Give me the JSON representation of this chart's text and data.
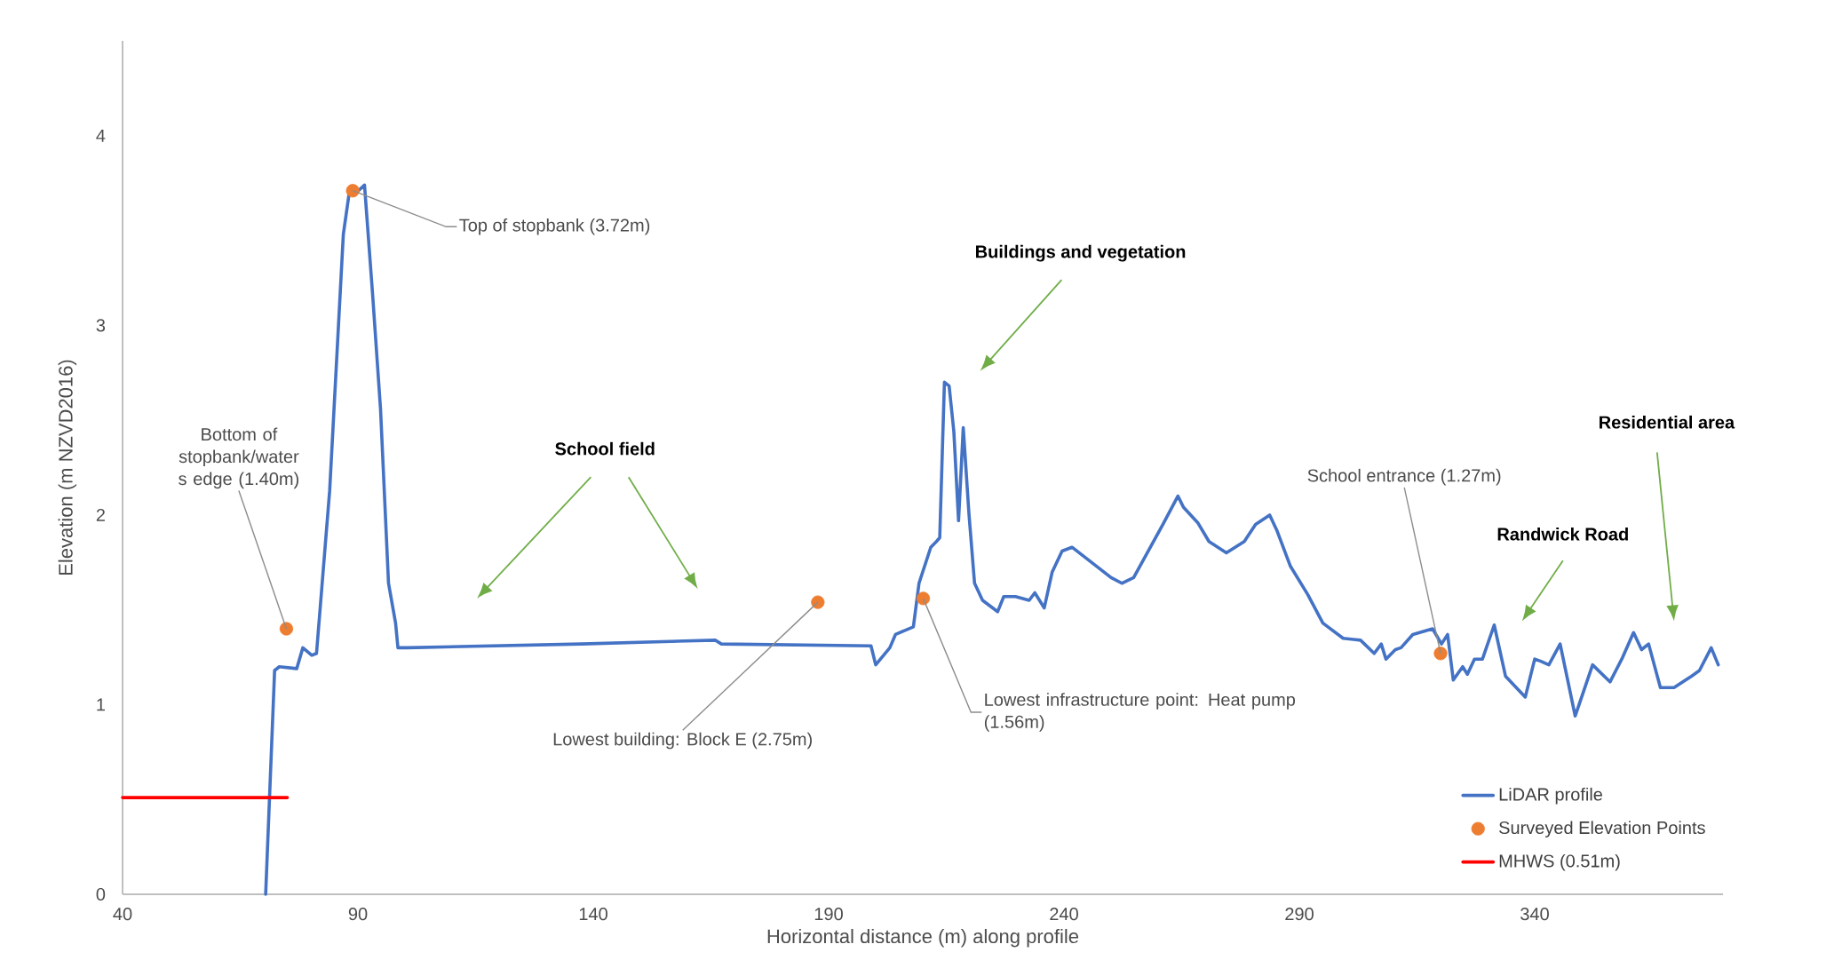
{
  "chart_data": {
    "type": "line",
    "xlabel": "Horizontal distance (m) along profile",
    "ylabel": "Elevation (m NZVD2016)",
    "xlim": [
      40,
      380
    ],
    "xticks": [
      40,
      90,
      140,
      190,
      240,
      290,
      340
    ],
    "ylim": [
      0,
      4.5
    ],
    "yticks": [
      0,
      1,
      2,
      3,
      4
    ],
    "grid": false,
    "legend": "bottom right",
    "series": [
      {
        "name": "LiDAR profile",
        "type": "line",
        "color": "#4472c4",
        "marker": "none",
        "x": [
          70.4,
          72.3,
          73.3,
          77,
          78.3,
          80.2,
          81.2,
          84,
          86.9,
          88.1,
          90.1,
          91.4,
          93.1,
          94.8,
          96.5,
          98,
          98.5,
          100.5,
          137.5,
          165.9,
          167.2,
          199,
          200,
          203,
          204.2,
          208,
          209.2,
          211.7,
          212.9,
          213.6,
          214.6,
          215.6,
          216.6,
          217.6,
          218.6,
          219.8,
          221,
          222.7,
          225.9,
          227.2,
          229.7,
          232.6,
          233.8,
          235.8,
          237.5,
          239.6,
          241.7,
          247.4,
          250,
          252.3,
          254.8,
          261,
          264.2,
          265.4,
          268.4,
          270.8,
          274.5,
          278.3,
          280.7,
          283.7,
          285.2,
          288.1,
          291.8,
          295,
          299.3,
          303,
          305.9,
          307.4,
          308.4,
          310.4,
          311.6,
          314.1,
          318.3,
          320.2,
          321.5,
          322.7,
          324.7,
          325.7,
          327.2,
          328.9,
          331.4,
          333.8,
          338,
          340,
          341.2,
          343,
          345.4,
          348.6,
          352.3,
          356,
          358.5,
          361,
          362.7,
          364.2,
          366.7,
          369.6,
          373.3,
          375,
          377.5,
          379
        ],
        "values": [
          0,
          1.18,
          1.2,
          1.19,
          1.3,
          1.26,
          1.27,
          2.13,
          3.48,
          3.69,
          3.71,
          3.74,
          3.17,
          2.56,
          1.64,
          1.43,
          1.3,
          1.3,
          1.32,
          1.34,
          1.32,
          1.31,
          1.21,
          1.3,
          1.37,
          1.41,
          1.64,
          1.83,
          1.86,
          1.88,
          2.7,
          2.68,
          2.44,
          1.97,
          2.46,
          2.01,
          1.64,
          1.55,
          1.49,
          1.57,
          1.57,
          1.55,
          1.59,
          1.51,
          1.7,
          1.81,
          1.83,
          1.72,
          1.67,
          1.64,
          1.67,
          1.95,
          2.1,
          2.04,
          1.96,
          1.86,
          1.8,
          1.86,
          1.95,
          2.0,
          1.92,
          1.73,
          1.58,
          1.43,
          1.35,
          1.34,
          1.27,
          1.32,
          1.24,
          1.29,
          1.3,
          1.37,
          1.4,
          1.32,
          1.37,
          1.13,
          1.2,
          1.16,
          1.24,
          1.24,
          1.42,
          1.15,
          1.04,
          1.24,
          1.23,
          1.21,
          1.32,
          0.94,
          1.21,
          1.12,
          1.24,
          1.38,
          1.29,
          1.32,
          1.09,
          1.09,
          1.15,
          1.18,
          1.3,
          1.21
        ]
      },
      {
        "name": "Surveyed Elevation Points",
        "type": "scatter",
        "color": "#ed7d31",
        "marker": "circle",
        "x": [
          74.8,
          88.9,
          187.7,
          210.1,
          320
        ],
        "values": [
          1.4,
          3.71,
          1.54,
          1.56,
          1.27
        ]
      },
      {
        "name": "MHWS (0.51m)",
        "type": "line",
        "color": "#ff0000",
        "marker": "none",
        "x": [
          40,
          75
        ],
        "values": [
          0.51,
          0.51
        ]
      }
    ],
    "annotations": [
      {
        "text": "Bottom of stopbank/water s edge (1.40m)",
        "x": 74.8,
        "y": 1.4
      },
      {
        "text": "Top of stopbank (3.72m)",
        "x": 88.9,
        "y": 3.71
      },
      "School field",
      "Buildings and vegetation",
      {
        "text": "Lowest building: Block E (2.75m)",
        "x": 187.7,
        "y": 1.54
      },
      {
        "text": "Lowest infrastructure point: Heat pump (1.56m)",
        "x": 210.1,
        "y": 1.56
      },
      {
        "text": "School entrance (1.27m)",
        "x": 320,
        "y": 1.27
      },
      "Randwick Road",
      "Residential area"
    ]
  }
}
